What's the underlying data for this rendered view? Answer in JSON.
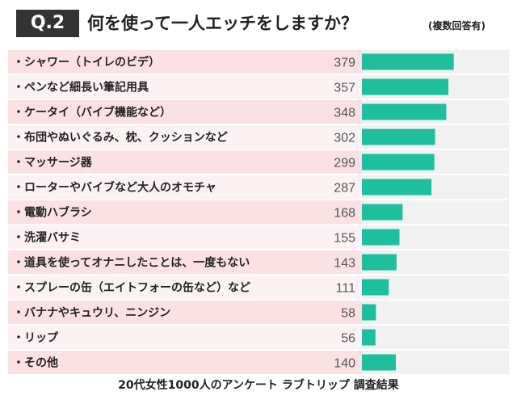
{
  "header": {
    "badge": "Q.2",
    "title": "何を使って一人エッチをしますか？",
    "suffix": "(複数回答有)"
  },
  "chart_data": {
    "type": "bar",
    "orientation": "horizontal",
    "categories": [
      "シャワー（トイレのビデ）",
      "ペンなど細長い筆記用具",
      "ケータイ（バイブ機能など）",
      "布団やぬいぐるみ、枕、クッションなど",
      "マッサージ器",
      "ローターやバイブなど大人のオモチャ",
      "電動ハブラシ",
      "洗濯バサミ",
      "道具を使ってオナニしたことは、一度もない",
      "スプレーの缶（エイトフォーの缶など）など",
      "バナナやキュウリ、ニンジン",
      "リップ",
      "その他"
    ],
    "values": [
      379,
      357,
      348,
      302,
      299,
      287,
      168,
      155,
      143,
      111,
      58,
      56,
      140
    ],
    "xlim": [
      0,
      600
    ],
    "colors": {
      "bar": "#1dbf9f",
      "row_pink": "#fbe1e4",
      "row_light": "#fdf2f3",
      "track": "#f1f1f1",
      "number": "#555555",
      "label": "#222222"
    }
  },
  "footer": "20代女性1000人のアンケート ラブトリップ 調査結果"
}
